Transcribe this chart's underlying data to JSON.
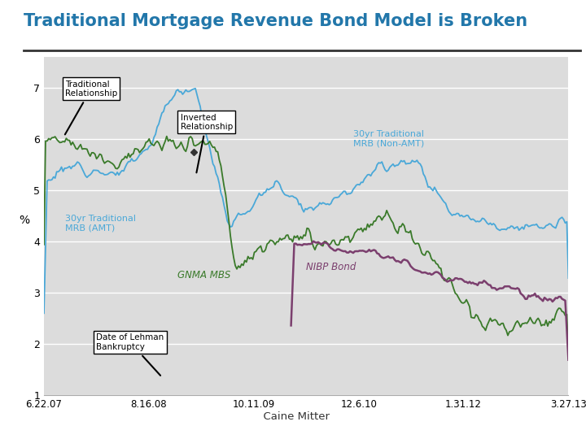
{
  "title": "Traditional Mortgage Revenue Bond Model is Broken",
  "title_color": "#2277aa",
  "title_fontsize": 15,
  "ylabel": "%",
  "ylim": [
    1,
    7.6
  ],
  "yticks": [
    1,
    2,
    3,
    4,
    5,
    6,
    7
  ],
  "xlabels": [
    "6.22.07",
    "8.16.08",
    "10.11.09",
    "12.6.10",
    "1.31.12",
    "3.27.13"
  ],
  "bg_color": "#f0f0f0",
  "plot_bg_color": "#dcdcdc",
  "line_mrb_color": "#4aa8d8",
  "line_gnma_color": "#3a7a2a",
  "line_nibp_color": "#7b3f6e",
  "n_points": 330
}
